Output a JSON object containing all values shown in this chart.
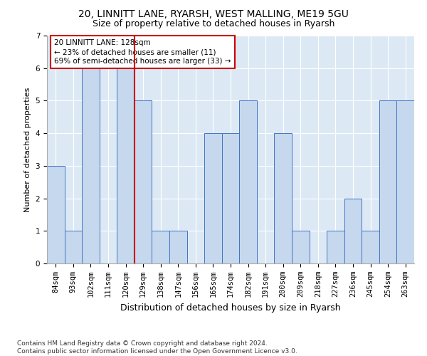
{
  "title1": "20, LINNITT LANE, RYARSH, WEST MALLING, ME19 5GU",
  "title2": "Size of property relative to detached houses in Ryarsh",
  "xlabel": "Distribution of detached houses by size in Ryarsh",
  "ylabel": "Number of detached properties",
  "categories": [
    "84sqm",
    "93sqm",
    "102sqm",
    "111sqm",
    "120sqm",
    "129sqm",
    "138sqm",
    "147sqm",
    "156sqm",
    "165sqm",
    "174sqm",
    "182sqm",
    "191sqm",
    "200sqm",
    "209sqm",
    "218sqm",
    "227sqm",
    "236sqm",
    "245sqm",
    "254sqm",
    "263sqm"
  ],
  "values": [
    3,
    1,
    6,
    0,
    6,
    5,
    1,
    1,
    0,
    4,
    4,
    5,
    0,
    4,
    1,
    0,
    1,
    2,
    1,
    5,
    5
  ],
  "bar_color": "#c5d8ed",
  "bar_edge_color": "#4472c4",
  "reference_line_index": 4,
  "reference_line_color": "#cc0000",
  "annotation_box_text": "20 LINNITT LANE: 128sqm\n← 23% of detached houses are smaller (11)\n69% of semi-detached houses are larger (33) →",
  "annotation_box_color": "#cc0000",
  "ylim": [
    0,
    7
  ],
  "yticks": [
    0,
    1,
    2,
    3,
    4,
    5,
    6,
    7
  ],
  "footnote": "Contains HM Land Registry data © Crown copyright and database right 2024.\nContains public sector information licensed under the Open Government Licence v3.0.",
  "bg_color": "#dce9f5",
  "title1_fontsize": 10,
  "title2_fontsize": 9,
  "xlabel_fontsize": 9,
  "ylabel_fontsize": 8,
  "tick_fontsize": 7.5,
  "annotation_fontsize": 7.5,
  "footnote_fontsize": 6.5
}
